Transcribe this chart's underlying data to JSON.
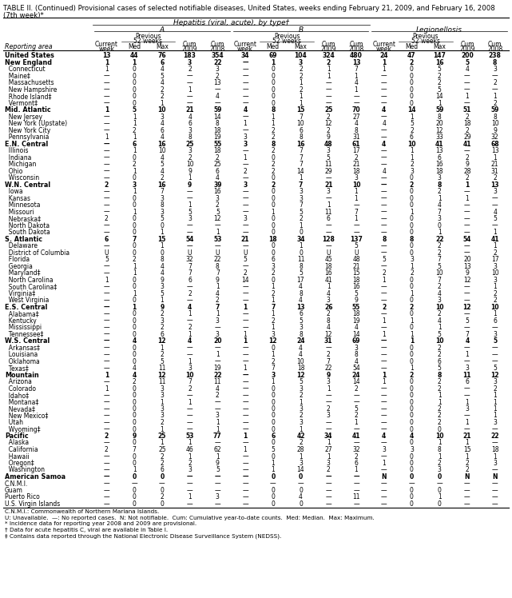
{
  "title": "TABLE II. (Continued) Provisional cases of selected notifiable diseases, United States, weeks ending February 21, 2009, and February 16, 2008",
  "title2": "(7th week)*",
  "col_group": "Hepatitis (viral, acute), by type†",
  "subgroups": [
    "A",
    "B",
    "Legionellosis"
  ],
  "header_row1": [
    "Current",
    "Previous 52 weeks",
    "",
    "Cum",
    "Cum",
    "Current",
    "Previous 52 weeks",
    "",
    "Cum",
    "Cum",
    "Current",
    "Previous 52 weeks",
    "",
    "Cum",
    "Cum"
  ],
  "header_row2": [
    "week",
    "Med",
    "Max",
    "2009",
    "2008",
    "week",
    "Med",
    "Max",
    "2009",
    "2008",
    "week",
    "Med",
    "Max",
    "2009",
    "2008"
  ],
  "reporting_area_label": "Reporting area",
  "footnotes": [
    "C.N.M.I.: Commonwealth of Northern Mariana Islands.",
    "U: Unavailable.  —: No reported cases.  N: Not notifiable.  Cum: Cumulative year-to-date counts.  Med: Median.  Max: Maximum.",
    "* Incidence data for reporting year 2008 and 2009 are provisional.",
    "† Data for acute hepatitis C, viral are available in Table I.",
    "‡ Contains data reported through the National Electronic Disease Surveillance System (NEDSS)."
  ],
  "rows": [
    [
      "United States",
      "13",
      "44",
      "76",
      "183",
      "354",
      "34",
      "69",
      "104",
      "324",
      "480",
      "24",
      "47",
      "147",
      "200",
      "238"
    ],
    [
      "New England",
      "1",
      "1",
      "6",
      "3",
      "22",
      "—",
      "1",
      "3",
      "2",
      "13",
      "1",
      "2",
      "16",
      "5",
      "8"
    ],
    [
      "  Connecticut",
      "1",
      "0",
      "4",
      "2",
      "3",
      "—",
      "0",
      "2",
      "1",
      "7",
      "1",
      "0",
      "5",
      "4",
      "3"
    ],
    [
      "  Maine‡",
      "—",
      "0",
      "5",
      "—",
      "2",
      "—",
      "0",
      "2",
      "1",
      "1",
      "—",
      "0",
      "2",
      "—",
      "—"
    ],
    [
      "  Massachusetts",
      "—",
      "0",
      "4",
      "—",
      "13",
      "—",
      "0",
      "1",
      "—",
      "4",
      "—",
      "0",
      "2",
      "—",
      "2"
    ],
    [
      "  New Hampshire",
      "—",
      "0",
      "2",
      "1",
      "—",
      "—",
      "0",
      "2",
      "—",
      "1",
      "—",
      "0",
      "5",
      "—",
      "—"
    ],
    [
      "  Rhode Island‡",
      "—",
      "0",
      "2",
      "—",
      "4",
      "—",
      "0",
      "1",
      "—",
      "—",
      "—",
      "0",
      "14",
      "1",
      "1"
    ],
    [
      "  Vermont‡",
      "—",
      "0",
      "1",
      "—",
      "—",
      "—",
      "0",
      "1",
      "—",
      "—",
      "—",
      "0",
      "1",
      "—",
      "2"
    ],
    [
      "Mid. Atlantic",
      "1",
      "5",
      "10",
      "21",
      "59",
      "4",
      "8",
      "15",
      "25",
      "70",
      "4",
      "14",
      "59",
      "51",
      "59"
    ],
    [
      "  New Jersey",
      "—",
      "1",
      "3",
      "4",
      "14",
      "—",
      "1",
      "7",
      "2",
      "27",
      "—",
      "1",
      "8",
      "2",
      "8"
    ],
    [
      "  New York (Upstate)",
      "—",
      "1",
      "4",
      "6",
      "8",
      "1",
      "1",
      "10",
      "12",
      "4",
      "4",
      "5",
      "20",
      "18",
      "10"
    ],
    [
      "  New York City",
      "—",
      "2",
      "6",
      "3",
      "18",
      "—",
      "2",
      "6",
      "2",
      "8",
      "—",
      "2",
      "12",
      "2",
      "9"
    ],
    [
      "  Pennsylvania",
      "1",
      "1",
      "4",
      "8",
      "19",
      "3",
      "2",
      "8",
      "9",
      "31",
      "—",
      "6",
      "33",
      "29",
      "32"
    ],
    [
      "E.N. Central",
      "—",
      "6",
      "16",
      "25",
      "55",
      "3",
      "8",
      "16",
      "48",
      "61",
      "4",
      "10",
      "41",
      "41",
      "68"
    ],
    [
      "  Illinois",
      "—",
      "1",
      "10",
      "3",
      "18",
      "—",
      "2",
      "7",
      "3",
      "17",
      "—",
      "1",
      "13",
      "—",
      "13"
    ],
    [
      "  Indiana",
      "—",
      "0",
      "4",
      "2",
      "2",
      "1",
      "0",
      "7",
      "5",
      "2",
      "—",
      "1",
      "6",
      "2",
      "1"
    ],
    [
      "  Michigan",
      "—",
      "2",
      "5",
      "10",
      "25",
      "—",
      "2",
      "7",
      "11",
      "21",
      "—",
      "2",
      "16",
      "9",
      "21"
    ],
    [
      "  Ohio",
      "—",
      "1",
      "4",
      "9",
      "6",
      "2",
      "2",
      "14",
      "29",
      "18",
      "4",
      "3",
      "18",
      "28",
      "31"
    ],
    [
      "  Wisconsin",
      "—",
      "0",
      "2",
      "1",
      "4",
      "—",
      "0",
      "1",
      "—",
      "3",
      "—",
      "0",
      "3",
      "2",
      "2"
    ],
    [
      "W.N. Central",
      "2",
      "3",
      "16",
      "9",
      "39",
      "3",
      "2",
      "7",
      "21",
      "10",
      "—",
      "2",
      "8",
      "1",
      "13"
    ],
    [
      "  Iowa",
      "—",
      "1",
      "7",
      "—",
      "16",
      "—",
      "0",
      "3",
      "3",
      "1",
      "—",
      "0",
      "2",
      "—",
      "3"
    ],
    [
      "  Kansas",
      "—",
      "0",
      "3",
      "—",
      "3",
      "—",
      "0",
      "3",
      "—",
      "1",
      "—",
      "0",
      "1",
      "1",
      "—"
    ],
    [
      "  Minnesota",
      "—",
      "0",
      "8",
      "1",
      "2",
      "—",
      "0",
      "7",
      "1",
      "—",
      "—",
      "0",
      "4",
      "—",
      "—"
    ],
    [
      "  Missouri",
      "—",
      "1",
      "3",
      "5",
      "5",
      "—",
      "1",
      "5",
      "11",
      "7",
      "—",
      "1",
      "7",
      "—",
      "4"
    ],
    [
      "  Nebraska‡",
      "2",
      "0",
      "5",
      "3",
      "12",
      "3",
      "0",
      "2",
      "6",
      "1",
      "—",
      "0",
      "3",
      "—",
      "5"
    ],
    [
      "  North Dakota",
      "—",
      "0",
      "0",
      "—",
      "—",
      "—",
      "0",
      "1",
      "—",
      "—",
      "—",
      "0",
      "0",
      "—",
      "—"
    ],
    [
      "  South Dakota",
      "—",
      "0",
      "1",
      "—",
      "1",
      "—",
      "0",
      "0",
      "—",
      "—",
      "—",
      "0",
      "1",
      "—",
      "1"
    ],
    [
      "S. Atlantic",
      "6",
      "7",
      "15",
      "54",
      "53",
      "21",
      "18",
      "34",
      "128",
      "137",
      "8",
      "8",
      "22",
      "54",
      "41"
    ],
    [
      "  Delaware",
      "—",
      "0",
      "1",
      "—",
      "—",
      "—",
      "0",
      "1",
      "—",
      "5",
      "—",
      "0",
      "2",
      "—",
      "1"
    ],
    [
      "  District of Columbia",
      "U",
      "0",
      "0",
      "U",
      "U",
      "U",
      "0",
      "0",
      "U",
      "U",
      "—",
      "0",
      "2",
      "—",
      "2"
    ],
    [
      "  Florida",
      "5",
      "2",
      "8",
      "32",
      "22",
      "5",
      "6",
      "11",
      "45",
      "48",
      "5",
      "3",
      "7",
      "20",
      "17"
    ],
    [
      "  Georgia",
      "—",
      "1",
      "4",
      "7",
      "8",
      "—",
      "3",
      "8",
      "18",
      "21",
      "—",
      "1",
      "5",
      "13",
      "3"
    ],
    [
      "  Maryland‡",
      "—",
      "1",
      "4",
      "7",
      "7",
      "2",
      "2",
      "5",
      "16",
      "15",
      "2",
      "2",
      "10",
      "9",
      "10"
    ],
    [
      "  North Carolina",
      "1",
      "0",
      "9",
      "6",
      "9",
      "14",
      "0",
      "17",
      "41",
      "18",
      "1",
      "0",
      "7",
      "12",
      "3"
    ],
    [
      "  South Carolina‡",
      "—",
      "0",
      "3",
      "—",
      "1",
      "—",
      "1",
      "4",
      "1",
      "16",
      "—",
      "0",
      "2",
      "—",
      "1"
    ],
    [
      "  Virginia‡",
      "—",
      "1",
      "5",
      "2",
      "4",
      "—",
      "2",
      "8",
      "4",
      "5",
      "—",
      "1",
      "4",
      "—",
      "2"
    ],
    [
      "  West Virginia",
      "—",
      "0",
      "1",
      "—",
      "2",
      "—",
      "1",
      "4",
      "3",
      "9",
      "—",
      "0",
      "3",
      "—",
      "2"
    ],
    [
      "E.S. Central",
      "—",
      "1",
      "9",
      "4",
      "7",
      "1",
      "7",
      "13",
      "26",
      "55",
      "2",
      "2",
      "10",
      "12",
      "10"
    ],
    [
      "  Alabama‡",
      "—",
      "0",
      "2",
      "1",
      "1",
      "—",
      "1",
      "6",
      "2",
      "18",
      "—",
      "0",
      "2",
      "—",
      "1"
    ],
    [
      "  Kentucky",
      "—",
      "0",
      "3",
      "—",
      "3",
      "—",
      "2",
      "5",
      "8",
      "19",
      "1",
      "1",
      "4",
      "5",
      "6"
    ],
    [
      "  Mississippi",
      "—",
      "0",
      "2",
      "2",
      "—",
      "—",
      "1",
      "3",
      "4",
      "4",
      "—",
      "0",
      "1",
      "—",
      "—"
    ],
    [
      "  Tennessee‡",
      "—",
      "0",
      "6",
      "1",
      "3",
      "1",
      "3",
      "8",
      "12",
      "14",
      "1",
      "1",
      "5",
      "7",
      "3"
    ],
    [
      "W.S. Central",
      "—",
      "4",
      "12",
      "4",
      "20",
      "1",
      "12",
      "24",
      "31",
      "69",
      "—",
      "1",
      "10",
      "4",
      "5"
    ],
    [
      "  Arkansas‡",
      "—",
      "0",
      "1",
      "—",
      "—",
      "—",
      "0",
      "4",
      "—",
      "3",
      "—",
      "0",
      "2",
      "—",
      "—"
    ],
    [
      "  Louisiana",
      "—",
      "0",
      "2",
      "—",
      "1",
      "—",
      "1",
      "4",
      "2",
      "8",
      "—",
      "0",
      "2",
      "1",
      "—"
    ],
    [
      "  Oklahoma",
      "—",
      "0",
      "5",
      "1",
      "—",
      "—",
      "2",
      "10",
      "7",
      "4",
      "—",
      "0",
      "6",
      "—",
      "—"
    ],
    [
      "  Texas‡",
      "—",
      "4",
      "11",
      "3",
      "19",
      "1",
      "7",
      "18",
      "22",
      "54",
      "—",
      "1",
      "5",
      "3",
      "5"
    ],
    [
      "Mountain",
      "1",
      "4",
      "12",
      "10",
      "22",
      "—",
      "3",
      "12",
      "9",
      "24",
      "1",
      "2",
      "8",
      "11",
      "12"
    ],
    [
      "  Arizona",
      "—",
      "2",
      "11",
      "7",
      "11",
      "—",
      "1",
      "5",
      "3",
      "14",
      "1",
      "0",
      "2",
      "6",
      "3"
    ],
    [
      "  Colorado",
      "1",
      "0",
      "3",
      "2",
      "4",
      "—",
      "0",
      "3",
      "1",
      "2",
      "—",
      "0",
      "2",
      "—",
      "2"
    ],
    [
      "  Idaho‡",
      "—",
      "0",
      "3",
      "—",
      "2",
      "—",
      "0",
      "2",
      "—",
      "—",
      "—",
      "0",
      "1",
      "—",
      "1"
    ],
    [
      "  Montana‡",
      "—",
      "0",
      "1",
      "1",
      "—",
      "—",
      "0",
      "1",
      "—",
      "—",
      "—",
      "0",
      "1",
      "1",
      "1"
    ],
    [
      "  Nevada‡",
      "—",
      "0",
      "3",
      "—",
      "—",
      "—",
      "0",
      "3",
      "2",
      "5",
      "—",
      "0",
      "2",
      "3",
      "1"
    ],
    [
      "  New Mexico‡",
      "—",
      "0",
      "3",
      "—",
      "3",
      "—",
      "0",
      "2",
      "3",
      "2",
      "—",
      "0",
      "2",
      "—",
      "1"
    ],
    [
      "  Utah",
      "—",
      "0",
      "2",
      "—",
      "1",
      "—",
      "0",
      "3",
      "—",
      "1",
      "—",
      "0",
      "2",
      "1",
      "3"
    ],
    [
      "  Wyoming‡",
      "—",
      "0",
      "1",
      "—",
      "1",
      "—",
      "0",
      "1",
      "—",
      "—",
      "—",
      "0",
      "0",
      "—",
      "—"
    ],
    [
      "Pacific",
      "2",
      "9",
      "25",
      "53",
      "77",
      "1",
      "6",
      "42",
      "34",
      "41",
      "4",
      "4",
      "10",
      "21",
      "22"
    ],
    [
      "  Alaska",
      "—",
      "0",
      "1",
      "1",
      "—",
      "—",
      "0",
      "2",
      "1",
      "—",
      "—",
      "0",
      "1",
      "1",
      "—"
    ],
    [
      "  California",
      "2",
      "7",
      "25",
      "46",
      "62",
      "1",
      "5",
      "28",
      "27",
      "32",
      "3",
      "3",
      "8",
      "15",
      "18"
    ],
    [
      "  Hawaii",
      "—",
      "0",
      "2",
      "1",
      "1",
      "—",
      "0",
      "1",
      "1",
      "2",
      "—",
      "0",
      "1",
      "1",
      "1"
    ],
    [
      "  Oregon‡",
      "—",
      "0",
      "2",
      "2",
      "9",
      "—",
      "1",
      "3",
      "3",
      "6",
      "1",
      "0",
      "2",
      "2",
      "3"
    ],
    [
      "  Washington",
      "—",
      "1",
      "6",
      "3",
      "5",
      "—",
      "1",
      "14",
      "2",
      "1",
      "—",
      "0",
      "3",
      "2",
      "—"
    ],
    [
      "American Samoa",
      "—",
      "0",
      "0",
      "—",
      "—",
      "—",
      "0",
      "0",
      "—",
      "—",
      "N",
      "0",
      "0",
      "N",
      "N"
    ],
    [
      "C.N.M.I.",
      "—",
      "—",
      "—",
      "—",
      "—",
      "—",
      "—",
      "—",
      "—",
      "—",
      "—",
      "—",
      "—",
      "—",
      "—"
    ],
    [
      "Guam",
      "—",
      "0",
      "0",
      "—",
      "—",
      "—",
      "0",
      "0",
      "—",
      "—",
      "—",
      "0",
      "0",
      "—",
      "—"
    ],
    [
      "Puerto Rico",
      "—",
      "0",
      "2",
      "1",
      "3",
      "—",
      "0",
      "4",
      "—",
      "11",
      "—",
      "0",
      "1",
      "—",
      "—"
    ],
    [
      "U.S. Virgin Islands",
      "—",
      "0",
      "0",
      "—",
      "—",
      "—",
      "0",
      "0",
      "—",
      "—",
      "—",
      "0",
      "0",
      "—",
      "—"
    ]
  ],
  "bold_rows": [
    0,
    1,
    8,
    13,
    19,
    27,
    37,
    42,
    47,
    56,
    62
  ],
  "bg_color_header": "#ffffff",
  "text_color": "#000000"
}
